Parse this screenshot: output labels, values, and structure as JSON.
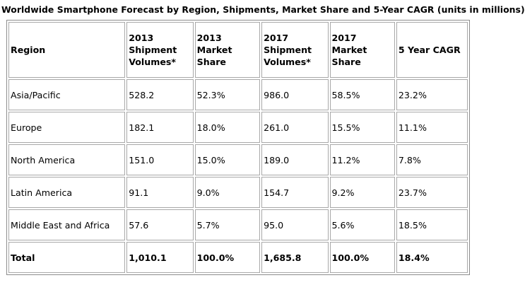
{
  "title": "Worldwide Smartphone Forecast by Region, Shipments, Market Share and 5-Year CAGR (units in millions)",
  "columns": [
    "Region",
    "2013 Shipment Volumes*",
    "2013 Market Share",
    "2017 Shipment Volumes*",
    "2017 Market Share",
    "5 Year CAGR"
  ],
  "rows": [
    [
      "Asia/Pacific",
      "528.2",
      "52.3%",
      "986.0",
      "58.5%",
      "23.2%"
    ],
    [
      "Europe",
      "182.1",
      "18.0%",
      "261.0",
      "15.5%",
      "11.1%"
    ],
    [
      "North America",
      "151.0",
      "15.0%",
      "189.0",
      "11.2%",
      "7.8%"
    ],
    [
      "Latin America",
      "91.1",
      "9.0%",
      "154.7",
      "9.2%",
      "23.7%"
    ],
    [
      "Middle East and Africa",
      "57.6",
      "5.7%",
      "95.0",
      "5.6%",
      "18.5%"
    ]
  ],
  "total": [
    "Total",
    "1,010.1",
    "100.0%",
    "1,685.8",
    "100.0%",
    "18.4%"
  ]
}
